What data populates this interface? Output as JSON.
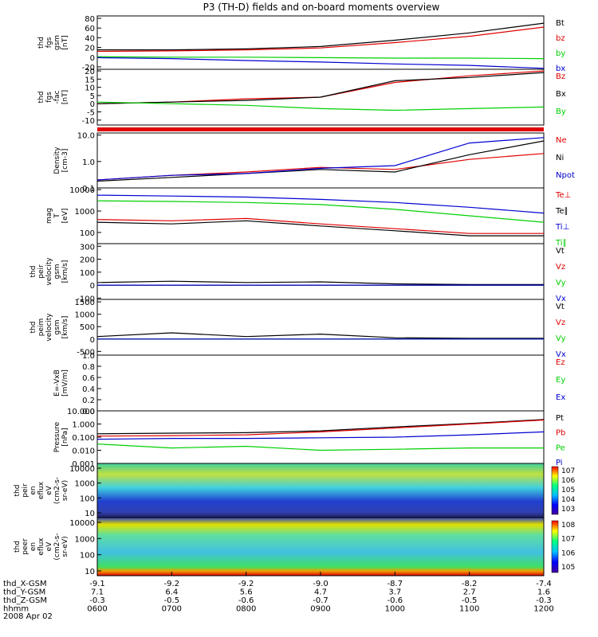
{
  "title": "P3 (TH-D) fields and on-board moments overview",
  "date_label": "2008 Apr 02",
  "orbit_rows": [
    {
      "label": "thd_X-GSM",
      "values": [
        "-9.1",
        "-9.2",
        "-9.2",
        "-9.0",
        "-8.7",
        "-8.2",
        "-7.4"
      ]
    },
    {
      "label": "thd_Y-GSM",
      "values": [
        "7.1",
        "6.4",
        "5.6",
        "4.7",
        "3.7",
        "2.7",
        "1.6"
      ]
    },
    {
      "label": "thd_Z-GSM",
      "values": [
        "-0.3",
        "-0.5",
        "-0.6",
        "-0.7",
        "-0.6",
        "-0.5",
        "-0.3"
      ]
    },
    {
      "label": "hhmm",
      "values": [
        "0600",
        "0700",
        "0800",
        "0900",
        "1000",
        "1100",
        "1200"
      ]
    }
  ],
  "colors": {
    "black": "#000000",
    "red": "#e00000",
    "green": "#00d000",
    "blue": "#0000d0"
  },
  "chart_data": [
    {
      "type": "line",
      "panel": "fgs-gsm",
      "ylabel": [
        "thd",
        "fgs",
        "gsm",
        "[nT]"
      ],
      "yticks": [
        "80",
        "60",
        "40",
        "20",
        "0",
        "-20"
      ],
      "ylim": [
        -25,
        85
      ],
      "scale": "linear",
      "legend": [
        {
          "name": "Bt",
          "color": "black"
        },
        {
          "name": "bz",
          "color": "red"
        },
        {
          "name": "by",
          "color": "green"
        },
        {
          "name": "bx",
          "color": "blue"
        }
      ],
      "series": [
        {
          "name": "Bt",
          "color": "black",
          "x": [
            6,
            7,
            8,
            9,
            10,
            11,
            12
          ],
          "y": [
            15,
            15,
            17,
            22,
            35,
            50,
            70
          ]
        },
        {
          "name": "bz",
          "color": "red",
          "x": [
            6,
            7,
            8,
            9,
            10,
            11,
            12
          ],
          "y": [
            12,
            13,
            15,
            19,
            30,
            43,
            62
          ]
        },
        {
          "name": "by",
          "color": "green",
          "x": [
            6,
            7,
            8,
            9,
            10,
            11,
            12
          ],
          "y": [
            1,
            0,
            0,
            -1,
            -2,
            -2,
            -3
          ]
        },
        {
          "name": "bx",
          "color": "blue",
          "x": [
            6,
            7,
            8,
            9,
            10,
            11,
            12
          ],
          "y": [
            -1,
            -3,
            -7,
            -10,
            -14,
            -17,
            -23
          ]
        }
      ]
    },
    {
      "type": "line",
      "panel": "fgs-fac",
      "ylabel": [
        "thd",
        "fgs",
        "-fac",
        "[nT]"
      ],
      "yticks": [
        "20",
        "15",
        "10",
        "5",
        "0",
        "-5",
        "-10"
      ],
      "ylim": [
        -13,
        21
      ],
      "scale": "linear",
      "legend": [
        {
          "name": "Bz",
          "color": "red"
        },
        {
          "name": "Bx",
          "color": "black"
        },
        {
          "name": "By",
          "color": "green"
        }
      ],
      "series": [
        {
          "name": "Bz",
          "color": "red",
          "x": [
            6,
            7,
            8,
            9,
            10,
            11,
            12
          ],
          "y": [
            0,
            1,
            3,
            4,
            13,
            17,
            20
          ]
        },
        {
          "name": "Bx",
          "color": "black",
          "x": [
            6,
            7,
            8,
            9,
            10,
            11,
            12
          ],
          "y": [
            0,
            1,
            2,
            4,
            14,
            16,
            19
          ]
        },
        {
          "name": "By",
          "color": "green",
          "x": [
            6,
            7,
            8,
            9,
            10,
            11,
            12
          ],
          "y": [
            1,
            0,
            -1,
            -3,
            -4,
            -3,
            -2
          ]
        }
      ]
    },
    {
      "type": "line",
      "panel": "density",
      "ylabel": [
        "Density",
        "[cm-3]"
      ],
      "yticks": [
        "10.0",
        "1.0",
        "0.1"
      ],
      "ylim": [
        0.1,
        12
      ],
      "scale": "log",
      "legend": [
        {
          "name": "Ne",
          "color": "red"
        },
        {
          "name": "Ni",
          "color": "black"
        },
        {
          "name": "Npot",
          "color": "blue"
        }
      ],
      "series": [
        {
          "name": "Ne",
          "color": "red",
          "x": [
            6,
            7,
            8,
            9,
            10,
            11,
            12
          ],
          "y": [
            0.2,
            0.3,
            0.4,
            0.6,
            0.5,
            1.2,
            2.0
          ]
        },
        {
          "name": "Ni",
          "color": "black",
          "x": [
            6,
            7,
            8,
            9,
            10,
            11,
            12
          ],
          "y": [
            0.18,
            0.25,
            0.35,
            0.5,
            0.4,
            1.8,
            6.0
          ]
        },
        {
          "name": "Npot",
          "color": "blue",
          "x": [
            6,
            7,
            8,
            9,
            10,
            11,
            12
          ],
          "y": [
            0.2,
            0.3,
            0.35,
            0.55,
            0.7,
            5.0,
            8.0
          ]
        }
      ]
    },
    {
      "type": "line",
      "panel": "temperature",
      "ylabel": [
        "mag",
        "T",
        "[eV]"
      ],
      "yticks": [
        "10000",
        "1000",
        "100"
      ],
      "ylim": [
        30,
        12000
      ],
      "scale": "log",
      "legend": [
        {
          "name": "Te⊥",
          "color": "red"
        },
        {
          "name": "Te∥",
          "color": "black"
        },
        {
          "name": "Ti⊥",
          "color": "blue"
        },
        {
          "name": "Ti∥",
          "color": "green"
        }
      ],
      "series": [
        {
          "name": "Te⊥",
          "color": "red",
          "x": [
            6,
            7,
            8,
            9,
            10,
            11,
            12
          ],
          "y": [
            400,
            350,
            450,
            250,
            150,
            90,
            90
          ]
        },
        {
          "name": "Te∥",
          "color": "black",
          "x": [
            6,
            7,
            8,
            9,
            10,
            11,
            12
          ],
          "y": [
            300,
            250,
            350,
            200,
            120,
            70,
            70
          ]
        },
        {
          "name": "Ti⊥",
          "color": "blue",
          "x": [
            6,
            7,
            8,
            9,
            10,
            11,
            12
          ],
          "y": [
            5500,
            5000,
            4500,
            3500,
            2500,
            1500,
            800
          ]
        },
        {
          "name": "Ti∥",
          "color": "green",
          "x": [
            6,
            7,
            8,
            9,
            10,
            11,
            12
          ],
          "y": [
            3000,
            2800,
            2500,
            2000,
            1200,
            600,
            300
          ]
        }
      ]
    },
    {
      "type": "line",
      "panel": "peir-velocity",
      "ylabel": [
        "thd",
        "peir",
        "velocity",
        "gsm",
        "[km/s]"
      ],
      "yticks": [
        "300",
        "200",
        "100",
        "0",
        "-100"
      ],
      "ylim": [
        -110,
        320
      ],
      "scale": "linear",
      "legend": [
        {
          "name": "Vt",
          "color": "black"
        },
        {
          "name": "Vz",
          "color": "red"
        },
        {
          "name": "Vy",
          "color": "green"
        },
        {
          "name": "Vx",
          "color": "blue"
        }
      ],
      "series": [
        {
          "name": "Vt",
          "color": "black",
          "x": [
            6,
            7,
            8,
            9,
            10,
            11,
            12
          ],
          "y": [
            20,
            30,
            20,
            25,
            10,
            5,
            5
          ]
        },
        {
          "name": "Vz",
          "color": "red",
          "x": [
            6,
            7,
            8,
            9,
            10,
            11,
            12
          ],
          "y": [
            0,
            0,
            0,
            0,
            0,
            0,
            0
          ]
        },
        {
          "name": "Vy",
          "color": "green",
          "x": [
            6,
            7,
            8,
            9,
            10,
            11,
            12
          ],
          "y": [
            0,
            0,
            0,
            0,
            0,
            0,
            0
          ]
        },
        {
          "name": "Vx",
          "color": "blue",
          "x": [
            6,
            7,
            8,
            9,
            10,
            11,
            12
          ],
          "y": [
            0,
            0,
            0,
            0,
            0,
            0,
            0
          ]
        }
      ]
    },
    {
      "type": "line",
      "panel": "peim-velocity",
      "ylabel": [
        "thd",
        "peim",
        "velocity",
        "gsm",
        "[km/s]"
      ],
      "yticks": [
        "1500",
        "1000",
        "500",
        "0",
        "-500"
      ],
      "ylim": [
        -650,
        1600
      ],
      "scale": "linear",
      "legend": [
        {
          "name": "Vt",
          "color": "black"
        },
        {
          "name": "Vz",
          "color": "red"
        },
        {
          "name": "Vy",
          "color": "green"
        },
        {
          "name": "Vx",
          "color": "blue"
        }
      ],
      "series": [
        {
          "name": "Vt",
          "color": "black",
          "x": [
            6,
            7,
            8,
            9,
            10,
            11,
            12
          ],
          "y": [
            100,
            250,
            100,
            200,
            50,
            30,
            30
          ]
        },
        {
          "name": "Vz",
          "color": "red",
          "x": [
            6,
            7,
            8,
            9,
            10,
            11,
            12
          ],
          "y": [
            0,
            0,
            0,
            0,
            0,
            0,
            0
          ]
        },
        {
          "name": "Vy",
          "color": "green",
          "x": [
            6,
            7,
            8,
            9,
            10,
            11,
            12
          ],
          "y": [
            0,
            0,
            0,
            0,
            0,
            0,
            0
          ]
        },
        {
          "name": "Vx",
          "color": "blue",
          "x": [
            6,
            7,
            8,
            9,
            10,
            11,
            12
          ],
          "y": [
            0,
            0,
            0,
            0,
            0,
            0,
            0
          ]
        }
      ]
    },
    {
      "type": "line",
      "panel": "efield",
      "ylabel": [
        "E=-VxB",
        "[mV/m]"
      ],
      "yticks": [
        "1.0",
        "0.8",
        "0.6",
        "0.4",
        "0.2",
        "0.0"
      ],
      "ylim": [
        0,
        1
      ],
      "scale": "linear",
      "legend": [
        {
          "name": "Ez",
          "color": "red"
        },
        {
          "name": "Ey",
          "color": "green"
        },
        {
          "name": "Ex",
          "color": "blue"
        }
      ],
      "series": []
    },
    {
      "type": "line",
      "panel": "pressure",
      "ylabel": [
        "Pressure",
        "[nPa]"
      ],
      "yticks": [
        "10.000",
        "1.000",
        "0.100",
        "0.010",
        "0.001"
      ],
      "ylim": [
        0.001,
        10
      ],
      "scale": "log",
      "legend": [
        {
          "name": "Pt",
          "color": "black"
        },
        {
          "name": "Pb",
          "color": "red"
        },
        {
          "name": "Pe",
          "color": "green"
        },
        {
          "name": "Pi",
          "color": "blue"
        }
      ],
      "series": [
        {
          "name": "Pt",
          "color": "black",
          "x": [
            6,
            7,
            8,
            9,
            10,
            11,
            12
          ],
          "y": [
            0.18,
            0.2,
            0.22,
            0.3,
            0.6,
            1.1,
            2.2
          ]
        },
        {
          "name": "Pb",
          "color": "red",
          "x": [
            6,
            7,
            8,
            9,
            10,
            11,
            12
          ],
          "y": [
            0.12,
            0.13,
            0.15,
            0.25,
            0.5,
            1.0,
            2.0
          ]
        },
        {
          "name": "Pe",
          "color": "green",
          "x": [
            6,
            7,
            8,
            9,
            10,
            11,
            12
          ],
          "y": [
            0.03,
            0.015,
            0.02,
            0.01,
            0.012,
            0.015,
            0.015
          ]
        },
        {
          "name": "Pi",
          "color": "blue",
          "x": [
            6,
            7,
            8,
            9,
            10,
            11,
            12
          ],
          "y": [
            0.07,
            0.08,
            0.08,
            0.09,
            0.1,
            0.15,
            0.25
          ]
        }
      ]
    },
    {
      "type": "heatmap",
      "panel": "peir-en-eflux",
      "ylabel": [
        "thd",
        "peir",
        "en",
        "eflux",
        "eV",
        "(cm2-s-",
        "sr-eV)"
      ],
      "yticks": [
        "10000",
        "1000",
        "100",
        "10"
      ],
      "scale": "log",
      "colorbar_ticks": [
        "10^7",
        "10^6",
        "10^5",
        "10^4",
        "10^3"
      ]
    },
    {
      "type": "heatmap",
      "panel": "peer-en-eflux",
      "ylabel": [
        "thd",
        "peer",
        "en",
        "eflux",
        "eV",
        "(cm2-s-",
        "sr-eV)"
      ],
      "yticks": [
        "10000",
        "1000",
        "100",
        "10"
      ],
      "scale": "log",
      "colorbar_ticks": [
        "10^8",
        "10^7",
        "10^6",
        "10^5"
      ]
    }
  ]
}
